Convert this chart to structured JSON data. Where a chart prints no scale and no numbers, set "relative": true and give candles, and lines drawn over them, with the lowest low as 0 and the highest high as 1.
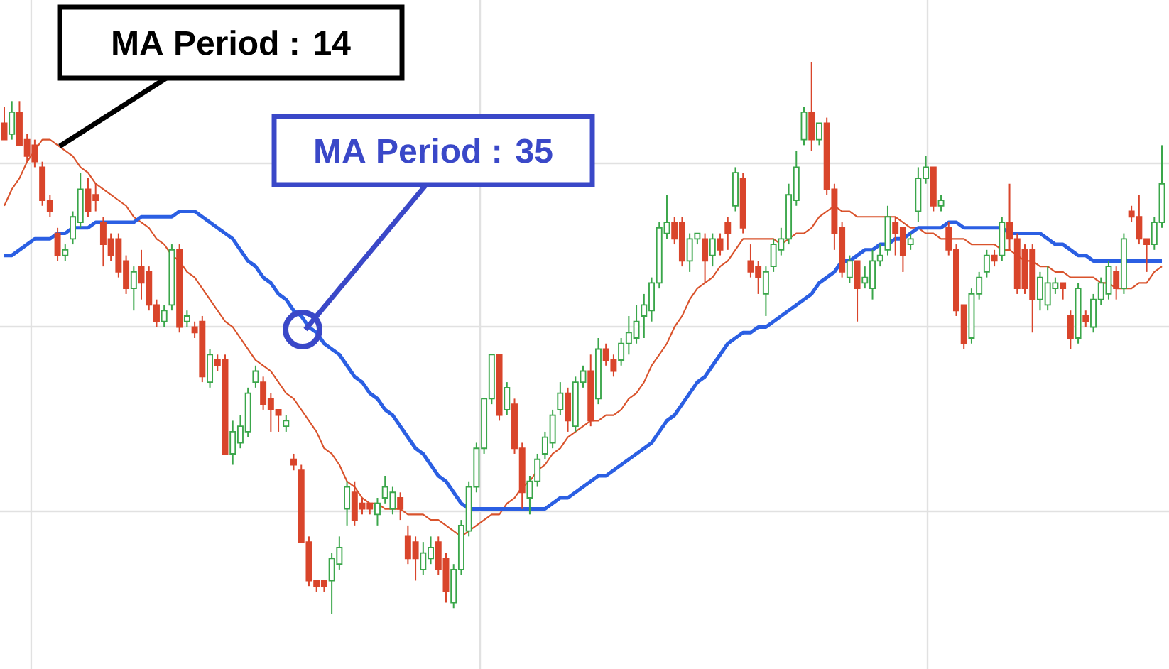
{
  "chart_data": {
    "type": "candlestick",
    "relative": true,
    "grid": true,
    "annotations": [
      "MA Period : 14",
      "MA Period : 35"
    ],
    "categories": [
      null,
      null,
      null,
      null,
      null,
      null,
      null,
      null,
      null,
      null,
      null,
      null,
      null,
      null,
      null,
      null,
      null,
      null,
      null,
      null,
      null,
      null,
      null,
      null,
      null,
      null,
      null,
      null,
      null,
      null,
      null,
      null,
      null,
      null,
      null,
      null,
      null,
      null,
      null,
      null,
      null,
      null,
      null,
      null,
      null,
      null,
      null,
      null,
      null,
      null,
      null,
      null,
      null,
      null,
      null,
      null,
      null,
      null,
      null,
      null,
      null,
      null,
      null,
      null,
      null,
      null,
      null,
      null,
      null,
      null,
      null,
      null,
      null,
      null,
      null,
      null,
      null,
      null,
      null,
      null,
      null,
      null,
      null,
      null,
      null,
      null,
      null,
      null,
      null,
      null,
      null,
      null,
      null,
      null,
      null,
      null,
      null,
      null,
      null,
      null,
      null,
      null,
      null,
      null,
      null,
      null,
      null,
      null,
      null,
      null,
      null,
      null,
      null,
      null,
      null,
      null,
      null,
      null,
      null,
      null,
      null,
      null,
      null,
      null,
      null,
      null,
      null,
      null,
      null,
      null,
      null,
      null,
      null,
      null,
      null,
      null,
      null,
      null,
      null,
      null,
      null,
      null,
      null,
      null,
      null,
      null,
      null,
      null,
      null,
      null,
      null,
      null,
      null
    ],
    "ohlc": [
      [
        0.89,
        0.92,
        0.86,
        0.86
      ],
      [
        0.87,
        0.93,
        0.86,
        0.91
      ],
      [
        0.91,
        0.93,
        0.85,
        0.85
      ],
      [
        0.86,
        0.87,
        0.82,
        0.83
      ],
      [
        0.85,
        0.86,
        0.81,
        0.82
      ],
      [
        0.81,
        0.82,
        0.74,
        0.75
      ],
      [
        0.75,
        0.76,
        0.72,
        0.73
      ],
      [
        0.69,
        0.7,
        0.64,
        0.65
      ],
      [
        0.65,
        0.67,
        0.64,
        0.66
      ],
      [
        0.68,
        0.73,
        0.67,
        0.72
      ],
      [
        0.71,
        0.8,
        0.7,
        0.77
      ],
      [
        0.77,
        0.79,
        0.72,
        0.73
      ],
      [
        0.76,
        0.78,
        0.73,
        0.75
      ],
      [
        0.71,
        0.72,
        0.63,
        0.67
      ],
      [
        0.68,
        0.69,
        0.64,
        0.65
      ],
      [
        0.68,
        0.69,
        0.61,
        0.62
      ],
      [
        0.64,
        0.65,
        0.58,
        0.59
      ],
      [
        0.59,
        0.63,
        0.55,
        0.62
      ],
      [
        0.63,
        0.66,
        0.57,
        0.6
      ],
      [
        0.62,
        0.63,
        0.55,
        0.56
      ],
      [
        0.56,
        0.57,
        0.52,
        0.53
      ],
      [
        0.53,
        0.56,
        0.52,
        0.55
      ],
      [
        0.56,
        0.67,
        0.55,
        0.66
      ],
      [
        0.66,
        0.67,
        0.51,
        0.52
      ],
      [
        0.53,
        0.55,
        0.52,
        0.54
      ],
      [
        0.52,
        0.53,
        0.5,
        0.51
      ],
      [
        0.53,
        0.54,
        0.42,
        0.43
      ],
      [
        0.42,
        0.48,
        0.41,
        0.47
      ],
      [
        0.46,
        0.47,
        0.44,
        0.45
      ],
      [
        0.46,
        0.47,
        0.29,
        0.29
      ],
      [
        0.29,
        0.35,
        0.27,
        0.33
      ],
      [
        0.31,
        0.36,
        0.3,
        0.34
      ],
      [
        0.33,
        0.41,
        0.32,
        0.4
      ],
      [
        0.42,
        0.45,
        0.41,
        0.44
      ],
      [
        0.42,
        0.43,
        0.37,
        0.38
      ],
      [
        0.39,
        0.4,
        0.33,
        0.37
      ],
      [
        0.37,
        0.37,
        0.33,
        0.36
      ],
      [
        0.34,
        0.36,
        0.33,
        0.35
      ],
      [
        0.28,
        0.29,
        0.26,
        0.27
      ],
      [
        0.26,
        0.27,
        0.13,
        0.13
      ],
      [
        0.13,
        0.14,
        0.05,
        0.06
      ],
      [
        0.06,
        0.06,
        0.04,
        0.05
      ],
      [
        0.06,
        0.06,
        0.04,
        0.05
      ],
      [
        0.06,
        0.11,
        0.0,
        0.1
      ],
      [
        0.09,
        0.14,
        0.08,
        0.12
      ],
      [
        0.19,
        0.24,
        0.16,
        0.23
      ],
      [
        0.22,
        0.24,
        0.16,
        0.17
      ],
      [
        0.2,
        0.21,
        0.18,
        0.19
      ],
      [
        0.2,
        0.2,
        0.18,
        0.19
      ],
      [
        0.18,
        0.21,
        0.16,
        0.2
      ],
      [
        0.21,
        0.25,
        0.2,
        0.23
      ],
      [
        0.19,
        0.23,
        0.18,
        0.22
      ],
      [
        0.21,
        0.22,
        0.17,
        0.19
      ],
      [
        0.14,
        0.16,
        0.09,
        0.1
      ],
      [
        0.13,
        0.14,
        0.06,
        0.1
      ],
      [
        0.08,
        0.13,
        0.07,
        0.11
      ],
      [
        0.1,
        0.14,
        0.09,
        0.12
      ],
      [
        0.13,
        0.14,
        0.07,
        0.08
      ],
      [
        0.1,
        0.11,
        0.02,
        0.04
      ],
      [
        0.02,
        0.09,
        0.01,
        0.08
      ],
      [
        0.08,
        0.17,
        0.07,
        0.16
      ],
      [
        0.15,
        0.24,
        0.14,
        0.23
      ],
      [
        0.23,
        0.31,
        0.22,
        0.3
      ],
      [
        0.3,
        0.39,
        0.29,
        0.39
      ],
      [
        0.39,
        0.47,
        0.38,
        0.47
      ],
      [
        0.47,
        0.47,
        0.35,
        0.36
      ],
      [
        0.37,
        0.42,
        0.36,
        0.41
      ],
      [
        0.38,
        0.39,
        0.29,
        0.3
      ],
      [
        0.3,
        0.31,
        0.19,
        0.22
      ],
      [
        0.21,
        0.25,
        0.18,
        0.24
      ],
      [
        0.24,
        0.29,
        0.23,
        0.28
      ],
      [
        0.29,
        0.33,
        0.28,
        0.32
      ],
      [
        0.31,
        0.37,
        0.3,
        0.36
      ],
      [
        0.37,
        0.42,
        0.36,
        0.4
      ],
      [
        0.4,
        0.41,
        0.33,
        0.35
      ],
      [
        0.34,
        0.43,
        0.33,
        0.42
      ],
      [
        0.42,
        0.45,
        0.41,
        0.44
      ],
      [
        0.44,
        0.47,
        0.34,
        0.35
      ],
      [
        0.39,
        0.5,
        0.38,
        0.48
      ],
      [
        0.48,
        0.49,
        0.45,
        0.46
      ],
      [
        0.46,
        0.47,
        0.43,
        0.44
      ],
      [
        0.46,
        0.5,
        0.45,
        0.49
      ],
      [
        0.49,
        0.54,
        0.47,
        0.51
      ],
      [
        0.5,
        0.56,
        0.49,
        0.53
      ],
      [
        0.54,
        0.58,
        0.5,
        0.56
      ],
      [
        0.55,
        0.61,
        0.53,
        0.6
      ],
      [
        0.6,
        0.71,
        0.59,
        0.7
      ],
      [
        0.69,
        0.76,
        0.68,
        0.71
      ],
      [
        0.71,
        0.72,
        0.67,
        0.68
      ],
      [
        0.71,
        0.72,
        0.63,
        0.64
      ],
      [
        0.64,
        0.69,
        0.62,
        0.68
      ],
      [
        0.68,
        0.69,
        0.67,
        0.69
      ],
      [
        0.68,
        0.69,
        0.6,
        0.64
      ],
      [
        0.65,
        0.69,
        0.63,
        0.68
      ],
      [
        0.68,
        0.69,
        0.65,
        0.66
      ],
      [
        0.71,
        0.72,
        0.66,
        0.69
      ],
      [
        0.74,
        0.81,
        0.73,
        0.8
      ],
      [
        0.79,
        0.8,
        0.69,
        0.7
      ],
      [
        0.64,
        0.67,
        0.61,
        0.62
      ],
      [
        0.63,
        0.64,
        0.58,
        0.61
      ],
      [
        0.58,
        0.63,
        0.54,
        0.62
      ],
      [
        0.63,
        0.68,
        0.62,
        0.67
      ],
      [
        0.66,
        0.7,
        0.65,
        0.68
      ],
      [
        0.68,
        0.78,
        0.67,
        0.76
      ],
      [
        0.75,
        0.84,
        0.74,
        0.81
      ],
      [
        0.86,
        0.92,
        0.85,
        0.91
      ],
      [
        0.91,
        1.0,
        0.84,
        0.86
      ],
      [
        0.86,
        0.89,
        0.85,
        0.89
      ],
      [
        0.89,
        0.9,
        0.76,
        0.77
      ],
      [
        0.77,
        0.78,
        0.66,
        0.69
      ],
      [
        0.7,
        0.71,
        0.61,
        0.62
      ],
      [
        0.61,
        0.65,
        0.6,
        0.64
      ],
      [
        0.64,
        0.64,
        0.53,
        0.59
      ],
      [
        0.6,
        0.63,
        0.59,
        0.61
      ],
      [
        0.59,
        0.66,
        0.57,
        0.64
      ],
      [
        0.64,
        0.67,
        0.63,
        0.65
      ],
      [
        0.66,
        0.74,
        0.65,
        0.72
      ],
      [
        0.71,
        0.72,
        0.65,
        0.69
      ],
      [
        0.7,
        0.7,
        0.62,
        0.65
      ],
      [
        0.67,
        0.69,
        0.66,
        0.68
      ],
      [
        0.73,
        0.81,
        0.71,
        0.79
      ],
      [
        0.79,
        0.83,
        0.78,
        0.81
      ],
      [
        0.81,
        0.81,
        0.73,
        0.74
      ],
      [
        0.74,
        0.76,
        0.73,
        0.75
      ],
      [
        0.7,
        0.71,
        0.65,
        0.66
      ],
      [
        0.66,
        0.67,
        0.54,
        0.55
      ],
      [
        0.56,
        0.56,
        0.48,
        0.49
      ],
      [
        0.5,
        0.59,
        0.49,
        0.58
      ],
      [
        0.58,
        0.62,
        0.57,
        0.61
      ],
      [
        0.62,
        0.66,
        0.61,
        0.65
      ],
      [
        0.65,
        0.66,
        0.63,
        0.64
      ],
      [
        0.65,
        0.72,
        0.64,
        0.71
      ],
      [
        0.71,
        0.78,
        0.66,
        0.68
      ],
      [
        0.68,
        0.69,
        0.58,
        0.59
      ],
      [
        0.66,
        0.67,
        0.58,
        0.59
      ],
      [
        0.66,
        0.67,
        0.51,
        0.57
      ],
      [
        0.57,
        0.62,
        0.55,
        0.61
      ],
      [
        0.56,
        0.63,
        0.55,
        0.6
      ],
      [
        0.59,
        0.61,
        0.58,
        0.6
      ],
      [
        0.6,
        0.6,
        0.57,
        0.59
      ],
      [
        0.54,
        0.55,
        0.48,
        0.5
      ],
      [
        0.5,
        0.6,
        0.49,
        0.59
      ],
      [
        0.54,
        0.55,
        0.52,
        0.53
      ],
      [
        0.52,
        0.58,
        0.51,
        0.57
      ],
      [
        0.57,
        0.61,
        0.56,
        0.6
      ],
      [
        0.58,
        0.64,
        0.57,
        0.63
      ],
      [
        0.62,
        0.63,
        0.57,
        0.59
      ],
      [
        0.59,
        0.69,
        0.58,
        0.68
      ],
      [
        0.73,
        0.74,
        0.71,
        0.72
      ],
      [
        0.72,
        0.76,
        0.67,
        0.68
      ],
      [
        0.68,
        0.68,
        0.62,
        0.67
      ],
      [
        0.67,
        0.72,
        0.66,
        0.71
      ],
      [
        0.71,
        0.85,
        0.7,
        0.78
      ]
    ],
    "colors": [
      "#d9452b",
      "#3aa64a",
      "#d9452b",
      "#d9452b",
      "#d9452b",
      "#d9452b",
      "#d9452b",
      "#d9452b",
      "#3aa64a",
      "#3aa64a",
      "#3aa64a",
      "#d9452b",
      "#d9452b",
      "#d9452b",
      "#d9452b",
      "#d9452b",
      "#d9452b",
      "#3aa64a",
      "#d9452b",
      "#d9452b",
      "#d9452b",
      "#3aa64a",
      "#3aa64a",
      "#d9452b",
      "#3aa64a",
      "#d9452b",
      "#d9452b",
      "#3aa64a",
      "#d9452b",
      "#d9452b",
      "#3aa64a",
      "#3aa64a",
      "#3aa64a",
      "#3aa64a",
      "#d9452b",
      "#d9452b",
      "#d9452b",
      "#3aa64a",
      "#d9452b",
      "#d9452b",
      "#d9452b",
      "#d9452b",
      "#d9452b",
      "#3aa64a",
      "#3aa64a",
      "#3aa64a",
      "#d9452b",
      "#d9452b",
      "#d9452b",
      "#3aa64a",
      "#3aa64a",
      "#3aa64a",
      "#d9452b",
      "#d9452b",
      "#d9452b",
      "#3aa64a",
      "#3aa64a",
      "#d9452b",
      "#d9452b",
      "#3aa64a",
      "#3aa64a",
      "#3aa64a",
      "#3aa64a",
      "#3aa64a",
      "#3aa64a",
      "#d9452b",
      "#3aa64a",
      "#d9452b",
      "#d9452b",
      "#3aa64a",
      "#3aa64a",
      "#3aa64a",
      "#3aa64a",
      "#3aa64a",
      "#d9452b",
      "#3aa64a",
      "#3aa64a",
      "#d9452b",
      "#3aa64a",
      "#d9452b",
      "#d9452b",
      "#3aa64a",
      "#3aa64a",
      "#3aa64a",
      "#3aa64a",
      "#3aa64a",
      "#3aa64a",
      "#3aa64a",
      "#d9452b",
      "#d9452b",
      "#3aa64a",
      "#3aa64a",
      "#d9452b",
      "#3aa64a",
      "#d9452b",
      "#d9452b",
      "#3aa64a",
      "#d9452b",
      "#d9452b",
      "#d9452b",
      "#3aa64a",
      "#3aa64a",
      "#3aa64a",
      "#3aa64a",
      "#3aa64a",
      "#3aa64a",
      "#d9452b",
      "#3aa64a",
      "#d9452b",
      "#d9452b",
      "#d9452b",
      "#3aa64a",
      "#d9452b",
      "#3aa64a",
      "#3aa64a",
      "#3aa64a",
      "#3aa64a",
      "#d9452b",
      "#d9452b",
      "#3aa64a",
      "#3aa64a",
      "#3aa64a",
      "#d9452b",
      "#3aa64a",
      "#d9452b",
      "#d9452b",
      "#d9452b",
      "#3aa64a",
      "#3aa64a",
      "#3aa64a",
      "#d9452b",
      "#3aa64a",
      "#d9452b",
      "#d9452b",
      "#d9452b",
      "#d9452b",
      "#3aa64a",
      "#3aa64a",
      "#3aa64a",
      "#d9452b",
      "#d9452b",
      "#3aa64a",
      "#d9452b",
      "#3aa64a",
      "#3aa64a",
      "#3aa64a",
      "#d9452b",
      "#3aa64a",
      "#d9452b",
      "#d9452b",
      "#d9452b",
      "#3aa64a",
      "#3aa64a"
    ],
    "series": [
      {
        "type": "line",
        "color": "#d9532c",
        "values": [
          0.74,
          0.77,
          0.79,
          0.82,
          0.84,
          0.86,
          0.86,
          0.85,
          0.84,
          0.83,
          0.81,
          0.8,
          0.78,
          0.77,
          0.76,
          0.75,
          0.74,
          0.72,
          0.71,
          0.7,
          0.68,
          0.67,
          0.65,
          0.64,
          0.62,
          0.61,
          0.59,
          0.57,
          0.55,
          0.53,
          0.52,
          0.5,
          0.48,
          0.46,
          0.45,
          0.44,
          0.42,
          0.4,
          0.39,
          0.37,
          0.35,
          0.33,
          0.3,
          0.29,
          0.27,
          0.24,
          0.23,
          0.21,
          0.2,
          0.2,
          0.19,
          0.19,
          0.19,
          0.18,
          0.18,
          0.18,
          0.17,
          0.17,
          0.16,
          0.15,
          0.14,
          0.15,
          0.16,
          0.17,
          0.18,
          0.18,
          0.2,
          0.21,
          0.23,
          0.24,
          0.26,
          0.27,
          0.29,
          0.3,
          0.32,
          0.33,
          0.34,
          0.35,
          0.35,
          0.36,
          0.36,
          0.37,
          0.39,
          0.4,
          0.42,
          0.45,
          0.47,
          0.49,
          0.52,
          0.54,
          0.57,
          0.59,
          0.6,
          0.61,
          0.63,
          0.64,
          0.66,
          0.68,
          0.68,
          0.68,
          0.68,
          0.68,
          0.67,
          0.68,
          0.69,
          0.69,
          0.7,
          0.72,
          0.73,
          0.74,
          0.73,
          0.73,
          0.72,
          0.72,
          0.72,
          0.72,
          0.72,
          0.72,
          0.71,
          0.7,
          0.7,
          0.69,
          0.69,
          0.68,
          0.68,
          0.68,
          0.68,
          0.67,
          0.67,
          0.67,
          0.67,
          0.66,
          0.66,
          0.65,
          0.64,
          0.64,
          0.63,
          0.63,
          0.62,
          0.62,
          0.61,
          0.61,
          0.61,
          0.61,
          0.6,
          0.6,
          0.59,
          0.59,
          0.59,
          0.6,
          0.6,
          0.62,
          0.63
        ]
      },
      {
        "type": "line",
        "color": "#2b5fe3",
        "values": [
          0.65,
          0.65,
          0.66,
          0.67,
          0.68,
          0.68,
          0.68,
          0.69,
          0.69,
          0.7,
          0.7,
          0.7,
          0.71,
          0.71,
          0.71,
          0.71,
          0.71,
          0.71,
          0.72,
          0.72,
          0.72,
          0.72,
          0.72,
          0.73,
          0.73,
          0.73,
          0.72,
          0.71,
          0.7,
          0.69,
          0.68,
          0.66,
          0.64,
          0.63,
          0.61,
          0.6,
          0.58,
          0.57,
          0.55,
          0.54,
          0.52,
          0.51,
          0.49,
          0.48,
          0.47,
          0.45,
          0.43,
          0.42,
          0.4,
          0.39,
          0.37,
          0.36,
          0.34,
          0.32,
          0.3,
          0.29,
          0.27,
          0.25,
          0.24,
          0.22,
          0.2,
          0.19,
          0.19,
          0.19,
          0.19,
          0.19,
          0.19,
          0.19,
          0.19,
          0.19,
          0.19,
          0.19,
          0.2,
          0.21,
          0.21,
          0.22,
          0.23,
          0.24,
          0.25,
          0.25,
          0.26,
          0.27,
          0.28,
          0.29,
          0.3,
          0.31,
          0.33,
          0.35,
          0.36,
          0.38,
          0.4,
          0.42,
          0.43,
          0.45,
          0.47,
          0.49,
          0.5,
          0.51,
          0.51,
          0.52,
          0.52,
          0.53,
          0.54,
          0.55,
          0.56,
          0.57,
          0.58,
          0.6,
          0.61,
          0.62,
          0.64,
          0.64,
          0.65,
          0.66,
          0.66,
          0.67,
          0.67,
          0.68,
          0.68,
          0.69,
          0.7,
          0.7,
          0.7,
          0.7,
          0.71,
          0.71,
          0.7,
          0.7,
          0.7,
          0.7,
          0.7,
          0.7,
          0.69,
          0.69,
          0.69,
          0.69,
          0.69,
          0.68,
          0.67,
          0.67,
          0.66,
          0.65,
          0.65,
          0.64,
          0.64,
          0.64,
          0.64,
          0.64,
          0.64,
          0.64,
          0.64,
          0.64,
          0.64
        ]
      }
    ]
  }
}
